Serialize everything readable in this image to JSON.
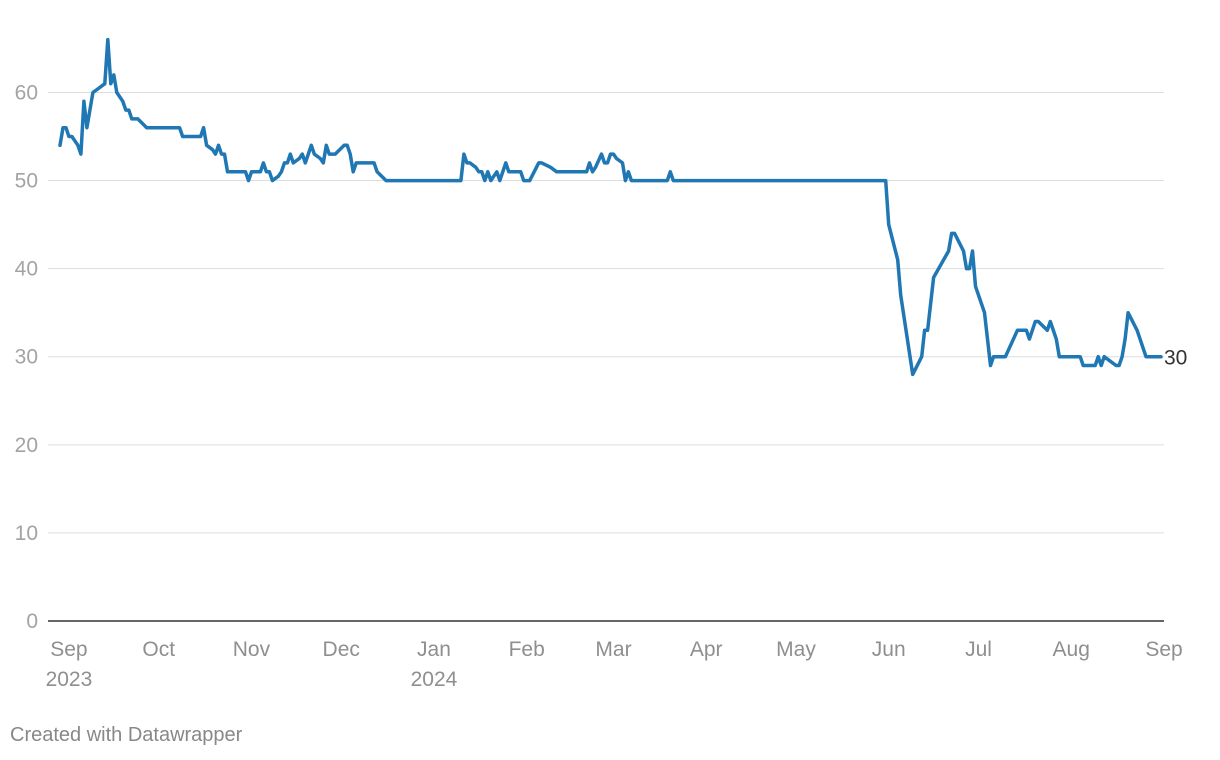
{
  "chart_data": {
    "type": "line",
    "x_axis": {
      "ticks": [
        {
          "date": "2023-09-01",
          "label": "Sep",
          "year": "2023"
        },
        {
          "date": "2023-10-01",
          "label": "Oct",
          "year": ""
        },
        {
          "date": "2023-11-01",
          "label": "Nov",
          "year": ""
        },
        {
          "date": "2023-12-01",
          "label": "Dec",
          "year": ""
        },
        {
          "date": "2024-01-01",
          "label": "Jan",
          "year": "2024"
        },
        {
          "date": "2024-02-01",
          "label": "Feb",
          "year": ""
        },
        {
          "date": "2024-03-01",
          "label": "Mar",
          "year": ""
        },
        {
          "date": "2024-04-01",
          "label": "Apr",
          "year": ""
        },
        {
          "date": "2024-05-01",
          "label": "May",
          "year": ""
        },
        {
          "date": "2024-06-01",
          "label": "Jun",
          "year": ""
        },
        {
          "date": "2024-07-01",
          "label": "Jul",
          "year": ""
        },
        {
          "date": "2024-08-01",
          "label": "Aug",
          "year": ""
        },
        {
          "date": "2024-09-01",
          "label": "Sep",
          "year": ""
        }
      ],
      "range": [
        "2023-08-25",
        "2024-09-01"
      ]
    },
    "y_axis": {
      "ticks": [
        0,
        10,
        20,
        30,
        40,
        50,
        60
      ],
      "range": [
        0,
        68
      ]
    },
    "grid": true,
    "series": [
      {
        "color": "#1f77b4",
        "end_label": "30",
        "points": [
          [
            "2023-08-29",
            54
          ],
          [
            "2023-08-30",
            56
          ],
          [
            "2023-08-31",
            56
          ],
          [
            "2023-09-01",
            55
          ],
          [
            "2023-09-02",
            55
          ],
          [
            "2023-09-04",
            54
          ],
          [
            "2023-09-05",
            53
          ],
          [
            "2023-09-06",
            59
          ],
          [
            "2023-09-07",
            56
          ],
          [
            "2023-09-09",
            60
          ],
          [
            "2023-09-11",
            60.5
          ],
          [
            "2023-09-13",
            61
          ],
          [
            "2023-09-14",
            66
          ],
          [
            "2023-09-15",
            61
          ],
          [
            "2023-09-16",
            62
          ],
          [
            "2023-09-17",
            60
          ],
          [
            "2023-09-19",
            59
          ],
          [
            "2023-09-20",
            58
          ],
          [
            "2023-09-21",
            58
          ],
          [
            "2023-09-22",
            57
          ],
          [
            "2023-09-24",
            57
          ],
          [
            "2023-09-27",
            56
          ],
          [
            "2023-10-08",
            56
          ],
          [
            "2023-10-09",
            55
          ],
          [
            "2023-10-15",
            55
          ],
          [
            "2023-10-16",
            56
          ],
          [
            "2023-10-17",
            54
          ],
          [
            "2023-10-19",
            53.5
          ],
          [
            "2023-10-20",
            53
          ],
          [
            "2023-10-21",
            54
          ],
          [
            "2023-10-22",
            53
          ],
          [
            "2023-10-23",
            53
          ],
          [
            "2023-10-24",
            51
          ],
          [
            "2023-10-30",
            51
          ],
          [
            "2023-10-31",
            50
          ],
          [
            "2023-11-01",
            51
          ],
          [
            "2023-11-04",
            51
          ],
          [
            "2023-11-05",
            52
          ],
          [
            "2023-11-06",
            51
          ],
          [
            "2023-11-07",
            51
          ],
          [
            "2023-11-08",
            50
          ],
          [
            "2023-11-10",
            50.5
          ],
          [
            "2023-11-11",
            51
          ],
          [
            "2023-11-12",
            52
          ],
          [
            "2023-11-13",
            52
          ],
          [
            "2023-11-14",
            53
          ],
          [
            "2023-11-15",
            52
          ],
          [
            "2023-11-17",
            52.5
          ],
          [
            "2023-11-18",
            53
          ],
          [
            "2023-11-19",
            52
          ],
          [
            "2023-11-21",
            54
          ],
          [
            "2023-11-22",
            53
          ],
          [
            "2023-11-24",
            52.5
          ],
          [
            "2023-11-25",
            52
          ],
          [
            "2023-11-26",
            54
          ],
          [
            "2023-11-27",
            53
          ],
          [
            "2023-11-29",
            53
          ],
          [
            "2023-12-02",
            54
          ],
          [
            "2023-12-03",
            54
          ],
          [
            "2023-12-04",
            53
          ],
          [
            "2023-12-05",
            51
          ],
          [
            "2023-12-06",
            52
          ],
          [
            "2023-12-12",
            52
          ],
          [
            "2023-12-13",
            51
          ],
          [
            "2023-12-16",
            50
          ],
          [
            "2024-01-10",
            50
          ],
          [
            "2024-01-11",
            53
          ],
          [
            "2024-01-12",
            52
          ],
          [
            "2024-01-13",
            52
          ],
          [
            "2024-01-15",
            51.5
          ],
          [
            "2024-01-16",
            51
          ],
          [
            "2024-01-17",
            51
          ],
          [
            "2024-01-18",
            50
          ],
          [
            "2024-01-19",
            51
          ],
          [
            "2024-01-20",
            50
          ],
          [
            "2024-01-22",
            51
          ],
          [
            "2024-01-23",
            50
          ],
          [
            "2024-01-25",
            52
          ],
          [
            "2024-01-26",
            51
          ],
          [
            "2024-01-30",
            51
          ],
          [
            "2024-01-31",
            50
          ],
          [
            "2024-02-02",
            50
          ],
          [
            "2024-02-05",
            52
          ],
          [
            "2024-02-06",
            52
          ],
          [
            "2024-02-09",
            51.5
          ],
          [
            "2024-02-11",
            51
          ],
          [
            "2024-02-21",
            51
          ],
          [
            "2024-02-22",
            52
          ],
          [
            "2024-02-23",
            51
          ],
          [
            "2024-02-24",
            51.5
          ],
          [
            "2024-02-26",
            53
          ],
          [
            "2024-02-27",
            52
          ],
          [
            "2024-02-28",
            52
          ],
          [
            "2024-02-29",
            53
          ],
          [
            "2024-03-01",
            53
          ],
          [
            "2024-03-02",
            52.5
          ],
          [
            "2024-03-04",
            52
          ],
          [
            "2024-03-05",
            50
          ],
          [
            "2024-03-06",
            51
          ],
          [
            "2024-03-07",
            50
          ],
          [
            "2024-03-19",
            50
          ],
          [
            "2024-03-20",
            51
          ],
          [
            "2024-03-21",
            50
          ],
          [
            "2024-05-30",
            50
          ],
          [
            "2024-05-31",
            50
          ],
          [
            "2024-06-01",
            45
          ],
          [
            "2024-06-04",
            41
          ],
          [
            "2024-06-05",
            37
          ],
          [
            "2024-06-09",
            28
          ],
          [
            "2024-06-12",
            30
          ],
          [
            "2024-06-13",
            33
          ],
          [
            "2024-06-14",
            33
          ],
          [
            "2024-06-16",
            39
          ],
          [
            "2024-06-21",
            42
          ],
          [
            "2024-06-22",
            44
          ],
          [
            "2024-06-23",
            44
          ],
          [
            "2024-06-26",
            42
          ],
          [
            "2024-06-27",
            40
          ],
          [
            "2024-06-28",
            40
          ],
          [
            "2024-06-29",
            42
          ],
          [
            "2024-06-30",
            38
          ],
          [
            "2024-07-03",
            35
          ],
          [
            "2024-07-05",
            29
          ],
          [
            "2024-07-06",
            30
          ],
          [
            "2024-07-10",
            30
          ],
          [
            "2024-07-14",
            33
          ],
          [
            "2024-07-17",
            33
          ],
          [
            "2024-07-18",
            32
          ],
          [
            "2024-07-20",
            34
          ],
          [
            "2024-07-21",
            34
          ],
          [
            "2024-07-24",
            33
          ],
          [
            "2024-07-25",
            34
          ],
          [
            "2024-07-27",
            32
          ],
          [
            "2024-07-28",
            30
          ],
          [
            "2024-08-04",
            30
          ],
          [
            "2024-08-05",
            29
          ],
          [
            "2024-08-09",
            29
          ],
          [
            "2024-08-10",
            30
          ],
          [
            "2024-08-11",
            29
          ],
          [
            "2024-08-12",
            30
          ],
          [
            "2024-08-16",
            29
          ],
          [
            "2024-08-17",
            29
          ],
          [
            "2024-08-18",
            30
          ],
          [
            "2024-08-19",
            32
          ],
          [
            "2024-08-20",
            35
          ],
          [
            "2024-08-23",
            33
          ],
          [
            "2024-08-26",
            30
          ],
          [
            "2024-08-31",
            30
          ]
        ]
      }
    ]
  },
  "footer": {
    "credit": "Created with Datawrapper"
  }
}
